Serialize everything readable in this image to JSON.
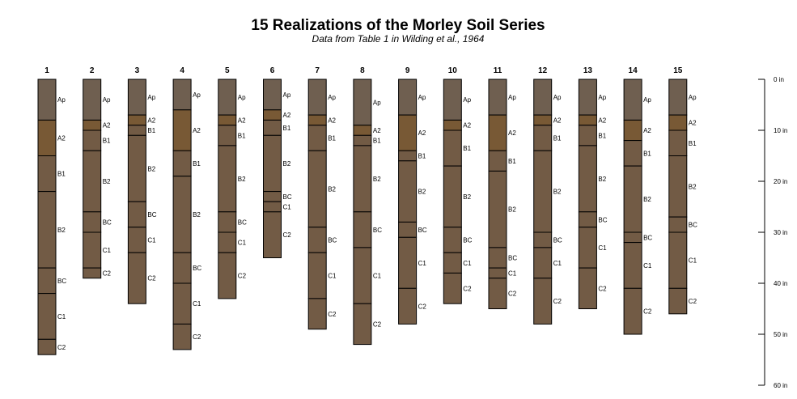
{
  "chart_data": {
    "type": "soil-profile",
    "title": "15 Realizations of the Morley Soil Series",
    "subtitle": "Data from Table 1 in Wilding et al., 1964",
    "depth_axis": {
      "ticks": [
        0,
        10,
        20,
        30,
        40,
        50,
        60
      ],
      "unit": "in",
      "range": [
        0,
        60
      ]
    },
    "colors": {
      "Ap": "#6f5f50",
      "A2": "#785935",
      "B": "#725b45"
    },
    "profiles": [
      {
        "id": "1",
        "horizons": [
          {
            "name": "Ap",
            "top": 0,
            "bottom": 8
          },
          {
            "name": "A2",
            "top": 8,
            "bottom": 15
          },
          {
            "name": "B1",
            "top": 15,
            "bottom": 22
          },
          {
            "name": "B2",
            "top": 22,
            "bottom": 37
          },
          {
            "name": "BC",
            "top": 37,
            "bottom": 42
          },
          {
            "name": "C1",
            "top": 42,
            "bottom": 51
          },
          {
            "name": "C2",
            "top": 51,
            "bottom": 54
          }
        ]
      },
      {
        "id": "2",
        "horizons": [
          {
            "name": "Ap",
            "top": 0,
            "bottom": 8
          },
          {
            "name": "A2",
            "top": 8,
            "bottom": 10
          },
          {
            "name": "B1",
            "top": 10,
            "bottom": 14
          },
          {
            "name": "B2",
            "top": 14,
            "bottom": 26
          },
          {
            "name": "BC",
            "top": 26,
            "bottom": 30
          },
          {
            "name": "C1",
            "top": 30,
            "bottom": 37
          },
          {
            "name": "C2",
            "top": 37,
            "bottom": 39
          }
        ]
      },
      {
        "id": "3",
        "horizons": [
          {
            "name": "Ap",
            "top": 0,
            "bottom": 7
          },
          {
            "name": "A2",
            "top": 7,
            "bottom": 9
          },
          {
            "name": "B1",
            "top": 9,
            "bottom": 11
          },
          {
            "name": "B2",
            "top": 11,
            "bottom": 24
          },
          {
            "name": "BC",
            "top": 24,
            "bottom": 29
          },
          {
            "name": "C1",
            "top": 29,
            "bottom": 34
          },
          {
            "name": "C2",
            "top": 34,
            "bottom": 44
          }
        ]
      },
      {
        "id": "4",
        "horizons": [
          {
            "name": "Ap",
            "top": 0,
            "bottom": 6
          },
          {
            "name": "A2",
            "top": 6,
            "bottom": 14
          },
          {
            "name": "B1",
            "top": 14,
            "bottom": 19
          },
          {
            "name": "B2",
            "top": 19,
            "bottom": 34
          },
          {
            "name": "BC",
            "top": 34,
            "bottom": 40
          },
          {
            "name": "C1",
            "top": 40,
            "bottom": 48
          },
          {
            "name": "C2",
            "top": 48,
            "bottom": 53
          }
        ]
      },
      {
        "id": "5",
        "horizons": [
          {
            "name": "Ap",
            "top": 0,
            "bottom": 7
          },
          {
            "name": "A2",
            "top": 7,
            "bottom": 9
          },
          {
            "name": "B1",
            "top": 9,
            "bottom": 13
          },
          {
            "name": "B2",
            "top": 13,
            "bottom": 26
          },
          {
            "name": "BC",
            "top": 26,
            "bottom": 30
          },
          {
            "name": "C1",
            "top": 30,
            "bottom": 34
          },
          {
            "name": "C2",
            "top": 34,
            "bottom": 43
          }
        ]
      },
      {
        "id": "6",
        "horizons": [
          {
            "name": "Ap",
            "top": 0,
            "bottom": 6
          },
          {
            "name": "A2",
            "top": 6,
            "bottom": 8
          },
          {
            "name": "B1",
            "top": 8,
            "bottom": 11
          },
          {
            "name": "B2",
            "top": 11,
            "bottom": 22
          },
          {
            "name": "BC",
            "top": 22,
            "bottom": 24
          },
          {
            "name": "C1",
            "top": 24,
            "bottom": 26
          },
          {
            "name": "C2",
            "top": 26,
            "bottom": 35
          }
        ]
      },
      {
        "id": "7",
        "horizons": [
          {
            "name": "Ap",
            "top": 0,
            "bottom": 7
          },
          {
            "name": "A2",
            "top": 7,
            "bottom": 9
          },
          {
            "name": "B1",
            "top": 9,
            "bottom": 14
          },
          {
            "name": "B2",
            "top": 14,
            "bottom": 29
          },
          {
            "name": "BC",
            "top": 29,
            "bottom": 34
          },
          {
            "name": "C1",
            "top": 34,
            "bottom": 43
          },
          {
            "name": "C2",
            "top": 43,
            "bottom": 49
          }
        ]
      },
      {
        "id": "8",
        "horizons": [
          {
            "name": "Ap",
            "top": 0,
            "bottom": 9
          },
          {
            "name": "A2",
            "top": 9,
            "bottom": 11
          },
          {
            "name": "B1",
            "top": 11,
            "bottom": 13
          },
          {
            "name": "B2",
            "top": 13,
            "bottom": 26
          },
          {
            "name": "BC",
            "top": 26,
            "bottom": 33
          },
          {
            "name": "C1",
            "top": 33,
            "bottom": 44
          },
          {
            "name": "C2",
            "top": 44,
            "bottom": 52
          }
        ]
      },
      {
        "id": "9",
        "horizons": [
          {
            "name": "Ap",
            "top": 0,
            "bottom": 7
          },
          {
            "name": "A2",
            "top": 7,
            "bottom": 14
          },
          {
            "name": "B1",
            "top": 14,
            "bottom": 16
          },
          {
            "name": "B2",
            "top": 16,
            "bottom": 28
          },
          {
            "name": "BC",
            "top": 28,
            "bottom": 31
          },
          {
            "name": "C1",
            "top": 31,
            "bottom": 41
          },
          {
            "name": "C2",
            "top": 41,
            "bottom": 48
          }
        ]
      },
      {
        "id": "10",
        "horizons": [
          {
            "name": "Ap",
            "top": 0,
            "bottom": 8
          },
          {
            "name": "A2",
            "top": 8,
            "bottom": 10
          },
          {
            "name": "B1",
            "top": 10,
            "bottom": 17
          },
          {
            "name": "B2",
            "top": 17,
            "bottom": 29
          },
          {
            "name": "BC",
            "top": 29,
            "bottom": 34
          },
          {
            "name": "C1",
            "top": 34,
            "bottom": 38
          },
          {
            "name": "C2",
            "top": 38,
            "bottom": 44
          }
        ]
      },
      {
        "id": "11",
        "horizons": [
          {
            "name": "Ap",
            "top": 0,
            "bottom": 7
          },
          {
            "name": "A2",
            "top": 7,
            "bottom": 14
          },
          {
            "name": "B1",
            "top": 14,
            "bottom": 18
          },
          {
            "name": "B2",
            "top": 18,
            "bottom": 33
          },
          {
            "name": "BC",
            "top": 33,
            "bottom": 37
          },
          {
            "name": "C1",
            "top": 37,
            "bottom": 39
          },
          {
            "name": "C2",
            "top": 39,
            "bottom": 45
          }
        ]
      },
      {
        "id": "12",
        "horizons": [
          {
            "name": "Ap",
            "top": 0,
            "bottom": 7
          },
          {
            "name": "A2",
            "top": 7,
            "bottom": 9
          },
          {
            "name": "B1",
            "top": 9,
            "bottom": 14
          },
          {
            "name": "B2",
            "top": 14,
            "bottom": 30
          },
          {
            "name": "BC",
            "top": 30,
            "bottom": 33
          },
          {
            "name": "C1",
            "top": 33,
            "bottom": 39
          },
          {
            "name": "C2",
            "top": 39,
            "bottom": 48
          }
        ]
      },
      {
        "id": "13",
        "horizons": [
          {
            "name": "Ap",
            "top": 0,
            "bottom": 7
          },
          {
            "name": "A2",
            "top": 7,
            "bottom": 9
          },
          {
            "name": "B1",
            "top": 9,
            "bottom": 13
          },
          {
            "name": "B2",
            "top": 13,
            "bottom": 26
          },
          {
            "name": "BC",
            "top": 26,
            "bottom": 29
          },
          {
            "name": "C1",
            "top": 29,
            "bottom": 37
          },
          {
            "name": "C2",
            "top": 37,
            "bottom": 45
          }
        ]
      },
      {
        "id": "14",
        "horizons": [
          {
            "name": "Ap",
            "top": 0,
            "bottom": 8
          },
          {
            "name": "A2",
            "top": 8,
            "bottom": 12
          },
          {
            "name": "B1",
            "top": 12,
            "bottom": 17
          },
          {
            "name": "B2",
            "top": 17,
            "bottom": 30
          },
          {
            "name": "BC",
            "top": 30,
            "bottom": 32
          },
          {
            "name": "C1",
            "top": 32,
            "bottom": 41
          },
          {
            "name": "C2",
            "top": 41,
            "bottom": 50
          }
        ]
      },
      {
        "id": "15",
        "horizons": [
          {
            "name": "Ap",
            "top": 0,
            "bottom": 7
          },
          {
            "name": "A2",
            "top": 7,
            "bottom": 10
          },
          {
            "name": "B1",
            "top": 10,
            "bottom": 15
          },
          {
            "name": "B2",
            "top": 15,
            "bottom": 27
          },
          {
            "name": "BC",
            "top": 27,
            "bottom": 30
          },
          {
            "name": "C1",
            "top": 30,
            "bottom": 41
          },
          {
            "name": "C2",
            "top": 41,
            "bottom": 46
          }
        ]
      }
    ]
  }
}
